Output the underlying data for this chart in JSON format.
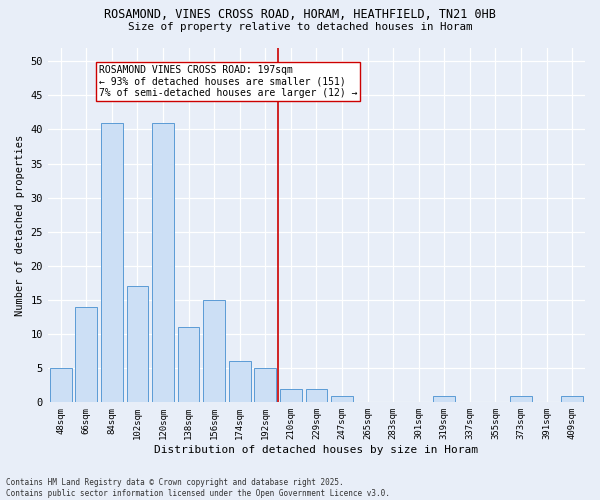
{
  "title1": "ROSAMOND, VINES CROSS ROAD, HORAM, HEATHFIELD, TN21 0HB",
  "title2": "Size of property relative to detached houses in Horam",
  "xlabel": "Distribution of detached houses by size in Horam",
  "ylabel": "Number of detached properties",
  "bar_labels": [
    "48sqm",
    "66sqm",
    "84sqm",
    "102sqm",
    "120sqm",
    "138sqm",
    "156sqm",
    "174sqm",
    "192sqm",
    "210sqm",
    "229sqm",
    "247sqm",
    "265sqm",
    "283sqm",
    "301sqm",
    "319sqm",
    "337sqm",
    "355sqm",
    "373sqm",
    "391sqm",
    "409sqm"
  ],
  "bar_values": [
    5,
    14,
    41,
    17,
    41,
    11,
    15,
    6,
    5,
    2,
    2,
    1,
    0,
    0,
    0,
    1,
    0,
    0,
    1,
    0,
    1
  ],
  "bar_color": "#ccdff5",
  "bar_edge_color": "#5b9bd5",
  "vline_index": 8,
  "vline_color": "#cc0000",
  "annotation_text": "ROSAMOND VINES CROSS ROAD: 197sqm\n← 93% of detached houses are smaller (151)\n7% of semi-detached houses are larger (12) →",
  "ylim": [
    0,
    52
  ],
  "yticks": [
    0,
    5,
    10,
    15,
    20,
    25,
    30,
    35,
    40,
    45,
    50
  ],
  "footer1": "Contains HM Land Registry data © Crown copyright and database right 2025.",
  "footer2": "Contains public sector information licensed under the Open Government Licence v3.0.",
  "bg_color": "#e8eef8"
}
